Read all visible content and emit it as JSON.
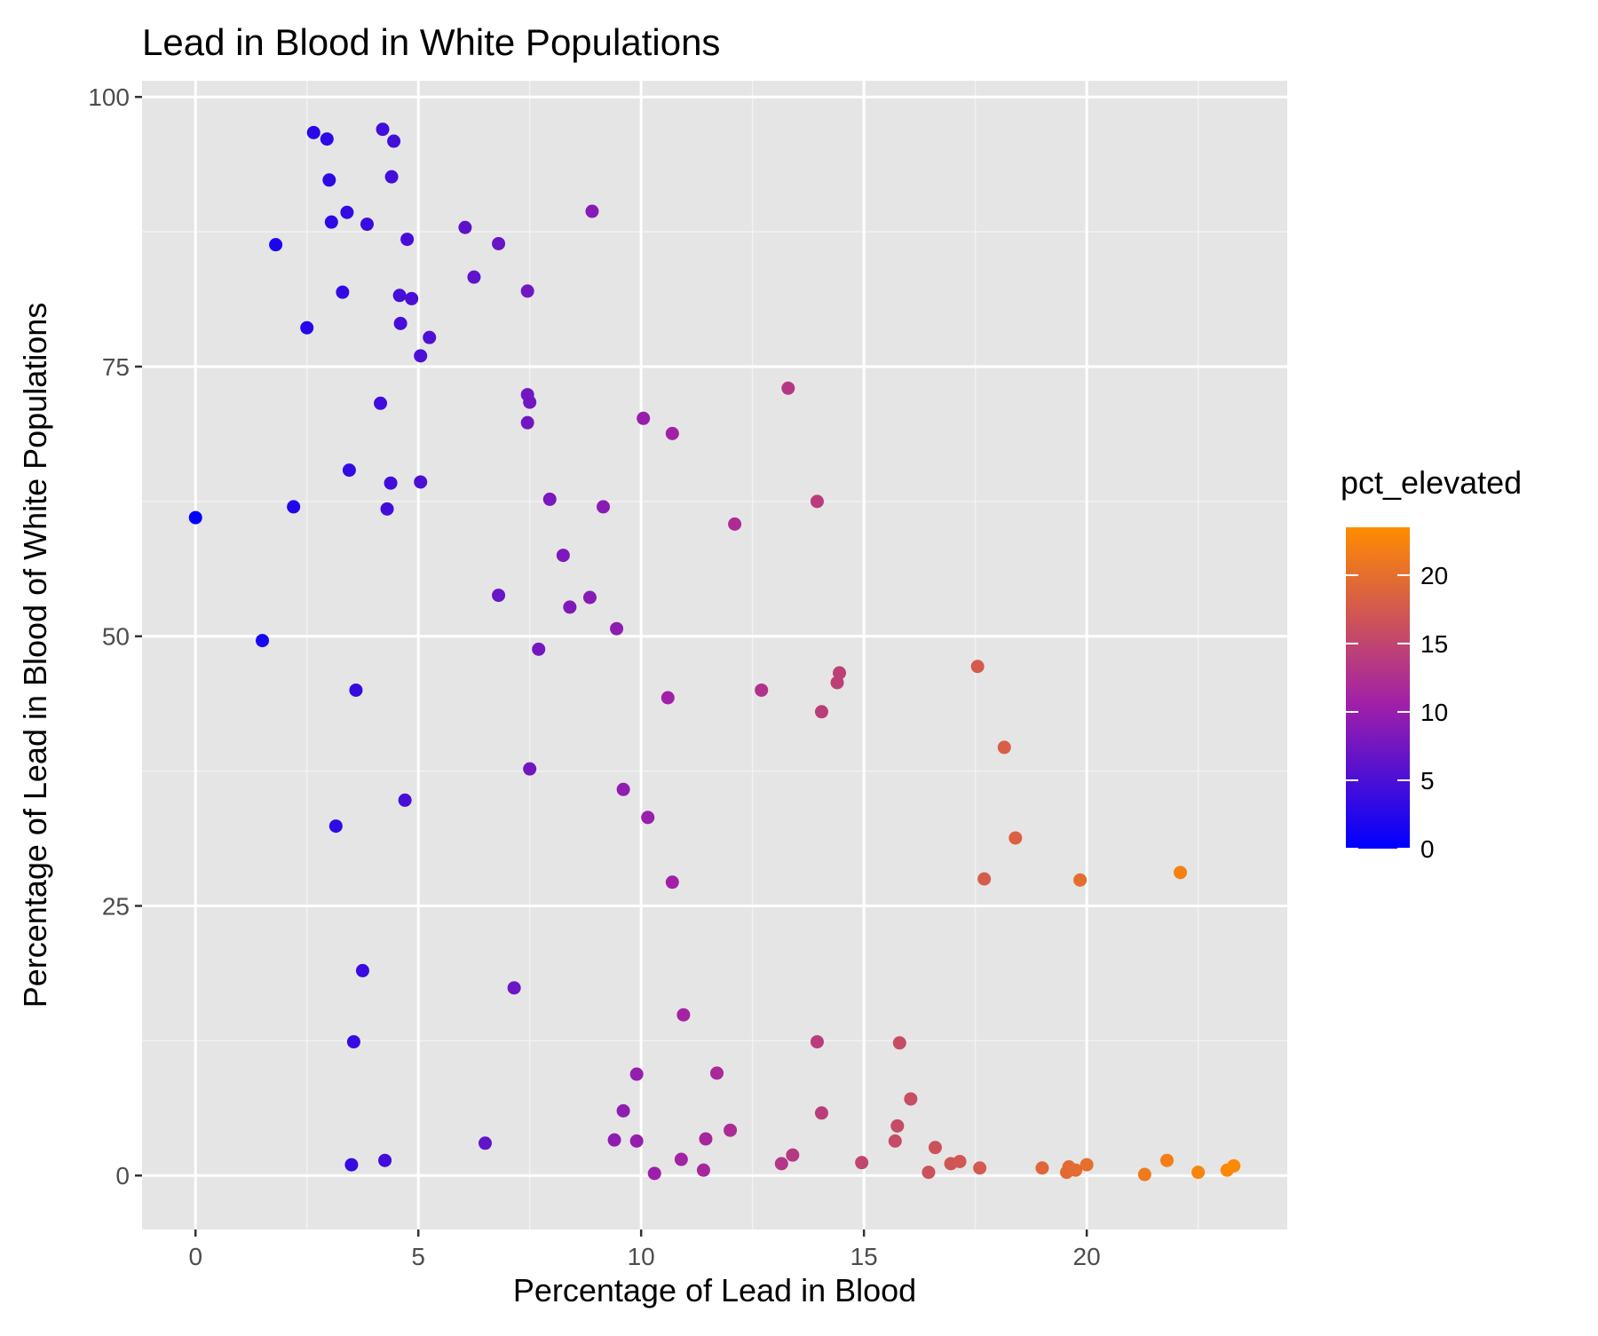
{
  "chart_data": {
    "type": "scatter",
    "title": "Lead in Blood in White Populations",
    "xlabel": "Percentage of Lead in Blood",
    "ylabel": "Percentage of Lead in Blood of White Populations",
    "xlim": [
      -1.2,
      24.5
    ],
    "ylim": [
      -5,
      101.5
    ],
    "x_ticks": [
      0,
      5,
      10,
      15,
      20
    ],
    "y_ticks": [
      0,
      25,
      50,
      75,
      100
    ],
    "grid": true,
    "legend": {
      "title": "pct_elevated",
      "position": "right",
      "type": "colorbar",
      "ticks": [
        0,
        5,
        10,
        15,
        20
      ],
      "range": [
        0,
        23.5
      ],
      "color_low": "#0000FF",
      "color_mid": "#A020A8",
      "color_high": "#FF8C00"
    },
    "colors": {
      "panel_bg": "#E5E5E5",
      "grid_major": "#FFFFFF",
      "grid_minor": "#F2F2F2",
      "text": "#000000",
      "tick_text": "#4D4D4D"
    },
    "points": [
      {
        "x": 0.0,
        "y": 61.0
      },
      {
        "x": 1.5,
        "y": 49.6
      },
      {
        "x": 1.8,
        "y": 86.3
      },
      {
        "x": 2.2,
        "y": 62.0
      },
      {
        "x": 2.5,
        "y": 78.6
      },
      {
        "x": 2.65,
        "y": 96.7
      },
      {
        "x": 2.95,
        "y": 96.1
      },
      {
        "x": 3.0,
        "y": 92.3
      },
      {
        "x": 3.05,
        "y": 88.4
      },
      {
        "x": 3.15,
        "y": 32.4
      },
      {
        "x": 3.3,
        "y": 81.9
      },
      {
        "x": 3.4,
        "y": 89.3
      },
      {
        "x": 3.45,
        "y": 65.4
      },
      {
        "x": 3.5,
        "y": 1.0
      },
      {
        "x": 3.55,
        "y": 12.4
      },
      {
        "x": 3.6,
        "y": 45.0
      },
      {
        "x": 3.75,
        "y": 19.0
      },
      {
        "x": 3.85,
        "y": 88.2
      },
      {
        "x": 4.15,
        "y": 71.6
      },
      {
        "x": 4.2,
        "y": 97.0
      },
      {
        "x": 4.25,
        "y": 1.4
      },
      {
        "x": 4.3,
        "y": 61.8
      },
      {
        "x": 4.38,
        "y": 64.2
      },
      {
        "x": 4.4,
        "y": 92.6
      },
      {
        "x": 4.45,
        "y": 95.9
      },
      {
        "x": 4.58,
        "y": 81.6
      },
      {
        "x": 4.6,
        "y": 79.0
      },
      {
        "x": 4.7,
        "y": 34.8
      },
      {
        "x": 4.75,
        "y": 86.8
      },
      {
        "x": 4.85,
        "y": 81.3
      },
      {
        "x": 5.05,
        "y": 76.0
      },
      {
        "x": 5.05,
        "y": 64.3
      },
      {
        "x": 5.25,
        "y": 77.7
      },
      {
        "x": 6.05,
        "y": 87.9
      },
      {
        "x": 6.25,
        "y": 83.3
      },
      {
        "x": 6.5,
        "y": 3.0
      },
      {
        "x": 6.8,
        "y": 86.4
      },
      {
        "x": 6.8,
        "y": 53.8
      },
      {
        "x": 7.15,
        "y": 17.4
      },
      {
        "x": 7.45,
        "y": 82.0
      },
      {
        "x": 7.45,
        "y": 72.4
      },
      {
        "x": 7.45,
        "y": 69.8
      },
      {
        "x": 7.5,
        "y": 71.7
      },
      {
        "x": 7.5,
        "y": 37.7
      },
      {
        "x": 7.7,
        "y": 48.8
      },
      {
        "x": 7.95,
        "y": 62.7
      },
      {
        "x": 8.25,
        "y": 57.5
      },
      {
        "x": 8.4,
        "y": 52.7
      },
      {
        "x": 8.85,
        "y": 53.6
      },
      {
        "x": 8.9,
        "y": 89.4
      },
      {
        "x": 9.15,
        "y": 62.0
      },
      {
        "x": 9.4,
        "y": 3.3
      },
      {
        "x": 9.45,
        "y": 50.7
      },
      {
        "x": 9.6,
        "y": 35.8
      },
      {
        "x": 9.6,
        "y": 6.0
      },
      {
        "x": 9.9,
        "y": 9.4
      },
      {
        "x": 9.9,
        "y": 3.2
      },
      {
        "x": 10.05,
        "y": 70.2
      },
      {
        "x": 10.15,
        "y": 33.2
      },
      {
        "x": 10.3,
        "y": 0.2
      },
      {
        "x": 10.6,
        "y": 44.3
      },
      {
        "x": 10.7,
        "y": 68.8
      },
      {
        "x": 10.7,
        "y": 27.2
      },
      {
        "x": 10.9,
        "y": 1.5
      },
      {
        "x": 10.95,
        "y": 14.9
      },
      {
        "x": 11.4,
        "y": 0.5
      },
      {
        "x": 11.45,
        "y": 3.4
      },
      {
        "x": 11.7,
        "y": 9.5
      },
      {
        "x": 12.0,
        "y": 4.2
      },
      {
        "x": 12.1,
        "y": 60.4
      },
      {
        "x": 12.7,
        "y": 45.0
      },
      {
        "x": 13.15,
        "y": 1.1
      },
      {
        "x": 13.3,
        "y": 73.0
      },
      {
        "x": 13.4,
        "y": 1.9
      },
      {
        "x": 13.95,
        "y": 62.5
      },
      {
        "x": 13.95,
        "y": 12.4
      },
      {
        "x": 14.05,
        "y": 43.0
      },
      {
        "x": 14.05,
        "y": 5.8
      },
      {
        "x": 14.4,
        "y": 45.7
      },
      {
        "x": 14.45,
        "y": 46.6
      },
      {
        "x": 14.95,
        "y": 1.2
      },
      {
        "x": 15.7,
        "y": 3.2
      },
      {
        "x": 15.75,
        "y": 4.6
      },
      {
        "x": 15.8,
        "y": 12.3
      },
      {
        "x": 16.05,
        "y": 7.1
      },
      {
        "x": 16.45,
        "y": 0.3
      },
      {
        "x": 16.6,
        "y": 2.6
      },
      {
        "x": 16.95,
        "y": 1.1
      },
      {
        "x": 17.15,
        "y": 1.3
      },
      {
        "x": 17.55,
        "y": 47.2
      },
      {
        "x": 17.6,
        "y": 0.7
      },
      {
        "x": 17.7,
        "y": 27.5
      },
      {
        "x": 18.15,
        "y": 39.7
      },
      {
        "x": 18.4,
        "y": 31.3
      },
      {
        "x": 19.0,
        "y": 0.7
      },
      {
        "x": 19.55,
        "y": 0.3
      },
      {
        "x": 19.6,
        "y": 0.8
      },
      {
        "x": 19.75,
        "y": 0.5
      },
      {
        "x": 19.85,
        "y": 27.4
      },
      {
        "x": 20.0,
        "y": 1.0
      },
      {
        "x": 21.3,
        "y": 0.1
      },
      {
        "x": 21.8,
        "y": 1.4
      },
      {
        "x": 22.1,
        "y": 28.1
      },
      {
        "x": 22.5,
        "y": 0.3
      },
      {
        "x": 23.15,
        "y": 0.5
      },
      {
        "x": 23.3,
        "y": 0.9
      }
    ]
  }
}
